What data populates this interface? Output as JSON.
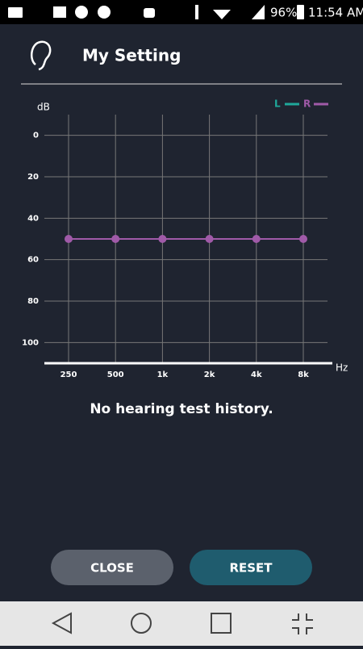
{
  "status_bar": {
    "battery": "96%",
    "time": "11:54 AM"
  },
  "header": {
    "title": "My Setting"
  },
  "chart_data": {
    "type": "line",
    "y_label": "dB",
    "x_label": "Hz",
    "categories": [
      "250",
      "500",
      "1k",
      "2k",
      "4k",
      "8k"
    ],
    "series": [
      {
        "name": "L",
        "color": "#1fa89a",
        "values": [
          null,
          null,
          null,
          null,
          null,
          null
        ]
      },
      {
        "name": "R",
        "color": "#a05aa8",
        "values": [
          50,
          50,
          50,
          50,
          50,
          50
        ]
      }
    ],
    "ylim": [
      -10,
      110
    ],
    "invert_y": true,
    "yticks": [
      0,
      20,
      40,
      60,
      80,
      100
    ],
    "grid": true,
    "legend": "top-right"
  },
  "message": "No hearing test history.",
  "buttons": {
    "close": "CLOSE",
    "reset": "RESET"
  }
}
